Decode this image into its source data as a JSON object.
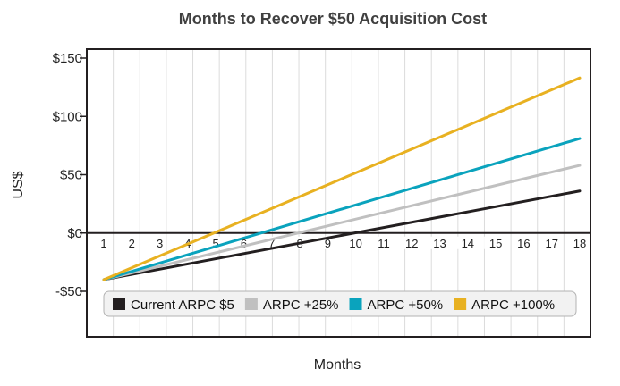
{
  "chart_data": {
    "type": "line",
    "title": "Months to Recover $50 Acquisition Cost",
    "xlabel": "Months",
    "ylabel": "US$",
    "x": [
      1,
      18
    ],
    "xticks": [
      "1",
      "2",
      "3",
      "4",
      "5",
      "6",
      "7",
      "8",
      "9",
      "10",
      "11",
      "12",
      "13",
      "14",
      "15",
      "16",
      "17",
      "18"
    ],
    "yticks": [
      {
        "value": 150,
        "label": "$150"
      },
      {
        "value": 100,
        "label": "$100"
      },
      {
        "value": 50,
        "label": "$50"
      },
      {
        "value": 0,
        "label": "$0"
      },
      {
        "value": -50,
        "label": "-$50"
      }
    ],
    "ylim": [
      -90,
      155
    ],
    "grid": "vertical",
    "legend_position": "bottom-inside",
    "series": [
      {
        "name": "Current ARPC $5",
        "color": "#231f20",
        "values": [
          -40,
          36
        ]
      },
      {
        "name": "ARPC +25%",
        "color": "#c0c0c0",
        "values": [
          -40,
          58
        ]
      },
      {
        "name": "ARPC +50%",
        "color": "#0aa3bd",
        "values": [
          -40,
          81
        ]
      },
      {
        "name": "ARPC +100%",
        "color": "#e8b121",
        "values": [
          -40,
          133
        ]
      }
    ]
  }
}
